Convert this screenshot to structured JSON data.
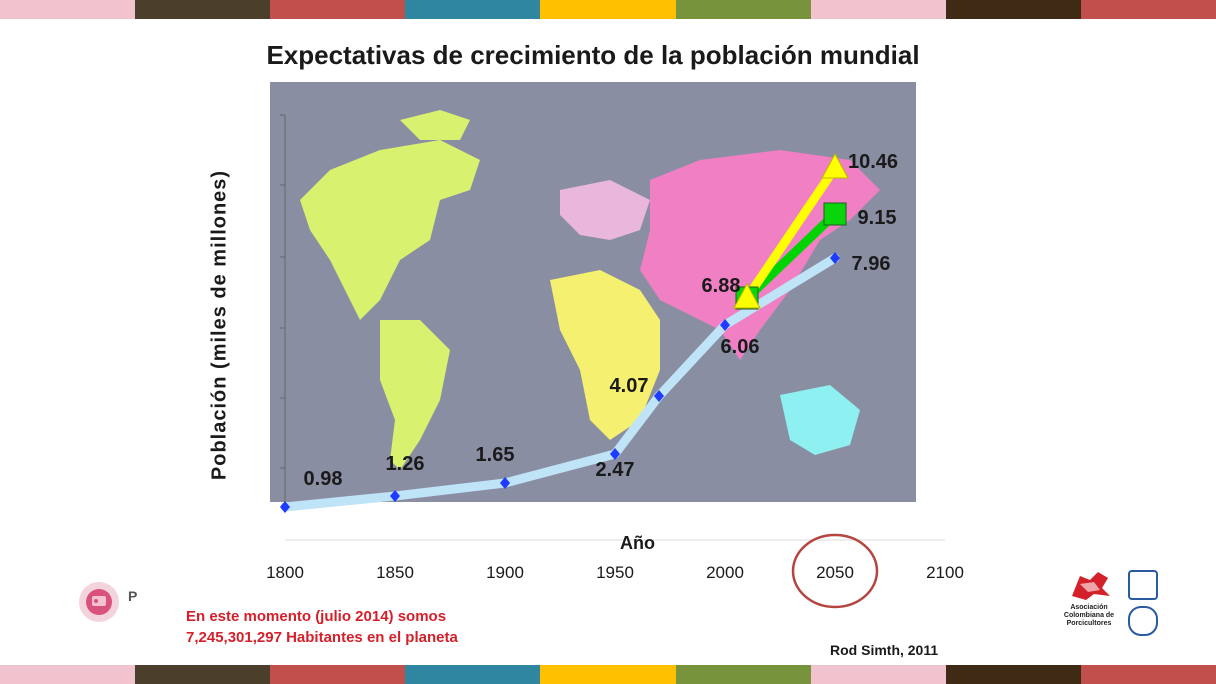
{
  "title": "Expectativas de crecimiento de la población mundial",
  "stripe_colors": [
    "#f0c3cf",
    "#4b3f2b",
    "#c1504d",
    "#2e86a0",
    "#ffc000",
    "#77933c",
    "#f0c3cf",
    "#3f2a15",
    "#c1504d"
  ],
  "chart_data": {
    "type": "line",
    "title": "Expectativas de crecimiento de la población mundial",
    "xlabel": "Año",
    "ylabel": "Población (miles de millones)",
    "xlim": [
      1800,
      2100
    ],
    "x_ticks": [
      "1800",
      "1850",
      "1900",
      "1950",
      "2000",
      "2050",
      "2100"
    ],
    "highlighted_tick": "2050",
    "series": [
      {
        "color": "#bfe3f7",
        "marker_color": "#1f3bff",
        "points": [
          {
            "x": 1800,
            "y": 0.98,
            "label": "0.98"
          },
          {
            "x": 1850,
            "y": 1.26,
            "label": "1.26"
          },
          {
            "x": 1900,
            "y": 1.65,
            "label": "1.65"
          },
          {
            "x": 1950,
            "y": 2.47,
            "label": "2.47"
          },
          {
            "x": 1970,
            "y": 4.07,
            "label": "4.07"
          },
          {
            "x": 2000,
            "y": 6.06,
            "label": "6.06"
          },
          {
            "x": 2050,
            "y": 7.96,
            "label": "7.96"
          }
        ]
      },
      {
        "color": "#00d400",
        "marker": "square",
        "points": [
          {
            "x": 2010,
            "y": 6.88,
            "label": "6.88"
          },
          {
            "x": 2050,
            "y": 9.15,
            "label": "9.15"
          }
        ]
      },
      {
        "color": "#ffff00",
        "marker": "triangle",
        "points": [
          {
            "x": 2010,
            "y": 6.88,
            "label": ""
          },
          {
            "x": 2050,
            "y": 10.46,
            "label": "10.46"
          }
        ]
      }
    ]
  },
  "note_lines": [
    "En este momento (julio 2014) somos",
    "7,245,301,297 Habitantes en el planeta"
  ],
  "credit": "Rod Simth,   2011",
  "logo_right_text": "Asociación Colombiana de Porcicultores",
  "logo_left_text": "P"
}
